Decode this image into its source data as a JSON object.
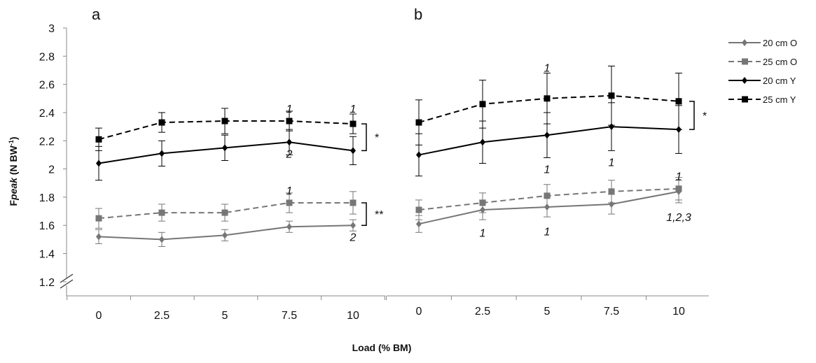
{
  "chart_data": {
    "type": "line",
    "ylabel": "Fpeak (N BW⁻¹)",
    "ylabel_main": "F",
    "ylabel_sub": "peak",
    "ylabel_rest": " (N BW",
    "ylabel_sup": "-1",
    "ylabel_close": ")",
    "xlabel": "Load (% BM)",
    "ylim": [
      1.1,
      3.0
    ],
    "yticks": [
      "1.2",
      "1.4",
      "1.6",
      "1.8",
      "2",
      "2.2",
      "2.4",
      "2.6",
      "2.8",
      "3"
    ],
    "categories": [
      "0",
      "2.5",
      "5",
      "7.5",
      "10"
    ],
    "series_styles": [
      {
        "name": "20 cm O",
        "color": "#767676",
        "dash": "none",
        "marker": "diamond"
      },
      {
        "name": "25 cm O",
        "color": "#767676",
        "dash": "8,5",
        "marker": "square"
      },
      {
        "name": "20 cm Y",
        "color": "#000000",
        "dash": "none",
        "marker": "diamond"
      },
      {
        "name": "25 cm Y",
        "color": "#000000",
        "dash": "8,5",
        "marker": "square"
      }
    ],
    "panels": [
      {
        "label": "a",
        "series": [
          {
            "name": "20 cm O",
            "values": [
              1.52,
              1.5,
              1.53,
              1.59,
              1.6
            ],
            "err": [
              0.05,
              0.05,
              0.04,
              0.04,
              0.04
            ]
          },
          {
            "name": "25 cm O",
            "values": [
              1.65,
              1.69,
              1.69,
              1.76,
              1.76
            ],
            "err": [
              0.07,
              0.06,
              0.06,
              0.07,
              0.08
            ]
          },
          {
            "name": "20 cm Y",
            "values": [
              2.04,
              2.11,
              2.15,
              2.19,
              2.13
            ],
            "err": [
              0.12,
              0.09,
              0.09,
              0.09,
              0.1
            ]
          },
          {
            "name": "25 cm Y",
            "values": [
              2.21,
              2.33,
              2.34,
              2.34,
              2.32
            ],
            "err": [
              0.08,
              0.07,
              0.09,
              0.07,
              0.07
            ]
          }
        ],
        "annotations": [
          {
            "text": "1",
            "cat": "7.5",
            "y": 2.43
          },
          {
            "text": "1",
            "cat": "10",
            "y": 2.43
          },
          {
            "text": "2",
            "cat": "7.5",
            "y": 2.11
          },
          {
            "text": "1",
            "cat": "7.5",
            "y": 1.85
          },
          {
            "text": "2",
            "cat": "10",
            "y": 1.52
          }
        ],
        "brackets": [
          {
            "text": "*",
            "y1": 2.32,
            "y2": 2.13
          },
          {
            "text": "**",
            "y1": 1.76,
            "y2": 1.6
          }
        ]
      },
      {
        "label": "b",
        "series": [
          {
            "name": "20 cm O",
            "values": [
              1.61,
              1.71,
              1.73,
              1.75,
              1.84
            ],
            "err": [
              0.06,
              0.07,
              0.07,
              0.07,
              0.08
            ]
          },
          {
            "name": "25 cm O",
            "values": [
              1.71,
              1.76,
              1.81,
              1.84,
              1.86
            ],
            "err": [
              0.07,
              0.07,
              0.08,
              0.08,
              0.08
            ]
          },
          {
            "name": "20 cm Y",
            "values": [
              2.1,
              2.19,
              2.24,
              2.3,
              2.28
            ],
            "err": [
              0.15,
              0.15,
              0.16,
              0.17,
              0.17
            ]
          },
          {
            "name": "25 cm Y",
            "values": [
              2.33,
              2.46,
              2.5,
              2.52,
              2.48
            ],
            "err": [
              0.16,
              0.17,
              0.18,
              0.21,
              0.2
            ]
          }
        ],
        "annotations": [
          {
            "text": "1",
            "cat": "5",
            "y": 2.72
          },
          {
            "text": "1",
            "cat": "5",
            "y": 2.0
          },
          {
            "text": "1",
            "cat": "7.5",
            "y": 2.05
          },
          {
            "text": "1",
            "cat": "10",
            "y": 1.95
          },
          {
            "text": "1",
            "cat": "2.5",
            "y": 1.55
          },
          {
            "text": "1",
            "cat": "5",
            "y": 1.56
          },
          {
            "text": "1,2,3",
            "cat": "10",
            "y": 1.66
          }
        ],
        "brackets": [
          {
            "text": "*",
            "y1": 2.48,
            "y2": 2.28
          }
        ]
      }
    ],
    "legend": [
      "20 cm O",
      "25 cm O",
      "20 cm Y",
      "25 cm Y"
    ],
    "legend_position": "right",
    "grid": false
  }
}
